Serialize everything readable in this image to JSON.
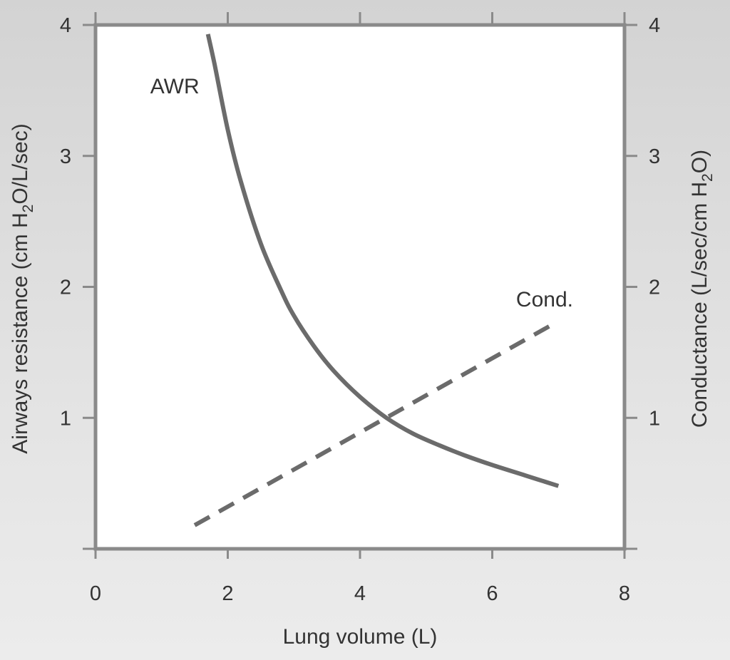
{
  "chart_data": {
    "type": "line",
    "xlabel": "Lung volume (L)",
    "ylabel_left": {
      "before": "Airways resistance (cm H",
      "sub": "2",
      "after": "O/L/sec)"
    },
    "ylabel_right": {
      "before": "Conductance (L/sec/cm H",
      "sub": "2",
      "after": "O)"
    },
    "xlim": [
      0,
      8
    ],
    "ylim_left": [
      0,
      4
    ],
    "ylim_right": [
      0,
      4
    ],
    "x_ticks": [
      "0",
      "2",
      "4",
      "6",
      "8"
    ],
    "y_ticks_left": [
      "1",
      "2",
      "3",
      "4"
    ],
    "y_ticks_right": [
      "1",
      "2",
      "3",
      "4"
    ],
    "grid": false,
    "series": [
      {
        "name": "AWR",
        "axis": "left",
        "style": "solid",
        "color": "#6b6b6b",
        "x": [
          1.7,
          1.8,
          2.0,
          2.2,
          2.5,
          2.8,
          3.0,
          3.3,
          3.6,
          4.0,
          4.4,
          4.8,
          5.2,
          5.6,
          6.0,
          6.5,
          7.0
        ],
        "y": [
          3.93,
          3.7,
          3.2,
          2.8,
          2.33,
          1.98,
          1.78,
          1.55,
          1.36,
          1.16,
          1.0,
          0.88,
          0.79,
          0.71,
          0.64,
          0.56,
          0.48
        ]
      },
      {
        "name": "Cond.",
        "axis": "right",
        "style": "dashed",
        "color": "#6b6b6b",
        "x": [
          1.5,
          6.9
        ],
        "y": [
          0.18,
          1.71
        ]
      }
    ]
  }
}
